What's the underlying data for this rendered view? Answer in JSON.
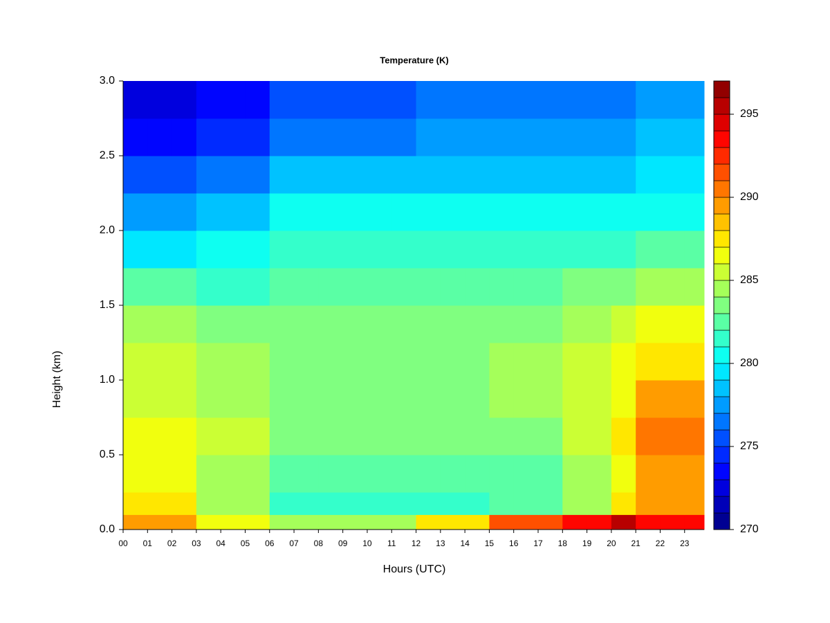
{
  "chart_data": {
    "type": "heatmap",
    "title": "Temperature (K)",
    "x_label": "Hours (UTC)",
    "y_label": "Height (km)",
    "colormap": "jet",
    "xlim": [
      0,
      23.8
    ],
    "ylim": [
      0,
      3
    ],
    "zlim": [
      270,
      297
    ],
    "xticks": [
      {
        "value": 0,
        "label": "00"
      },
      {
        "value": 1,
        "label": "01"
      },
      {
        "value": 2,
        "label": "02"
      },
      {
        "value": 3,
        "label": "03"
      },
      {
        "value": 4,
        "label": "04"
      },
      {
        "value": 5,
        "label": "05"
      },
      {
        "value": 6,
        "label": "06"
      },
      {
        "value": 7,
        "label": "07"
      },
      {
        "value": 8,
        "label": "08"
      },
      {
        "value": 9,
        "label": "09"
      },
      {
        "value": 10,
        "label": "10"
      },
      {
        "value": 11,
        "label": "11"
      },
      {
        "value": 12,
        "label": "12"
      },
      {
        "value": 13,
        "label": "13"
      },
      {
        "value": 14,
        "label": "14"
      },
      {
        "value": 15,
        "label": "15"
      },
      {
        "value": 16,
        "label": "16"
      },
      {
        "value": 17,
        "label": "17"
      },
      {
        "value": 18,
        "label": "18"
      },
      {
        "value": 19,
        "label": "19"
      },
      {
        "value": 20,
        "label": "20"
      },
      {
        "value": 21,
        "label": "21"
      },
      {
        "value": 22,
        "label": "22"
      },
      {
        "value": 23,
        "label": "23"
      }
    ],
    "yticks": [
      {
        "value": 0,
        "label": "0.0"
      },
      {
        "value": 0.5,
        "label": "0.5"
      },
      {
        "value": 1,
        "label": "1.0"
      },
      {
        "value": 1.5,
        "label": "1.5"
      },
      {
        "value": 2,
        "label": "2.0"
      },
      {
        "value": 2.5,
        "label": "2.5"
      },
      {
        "value": 3,
        "label": "3.0"
      }
    ],
    "zticks": [
      270,
      275,
      280,
      285,
      290,
      295
    ],
    "xbins": [
      0,
      1,
      2,
      3,
      4,
      5,
      6,
      7,
      8,
      9,
      10,
      11,
      12,
      13,
      14,
      15,
      16,
      17,
      18,
      19,
      20,
      21,
      22,
      23,
      23.8
    ],
    "ybins": [
      0,
      0.1,
      0.25,
      0.5,
      0.75,
      1,
      1.25,
      1.5,
      1.75,
      2,
      2.25,
      2.5,
      2.75,
      3
    ],
    "z": [
      [
        289,
        289,
        289,
        286,
        286,
        286,
        284,
        284,
        284,
        284,
        284,
        284,
        287,
        287,
        287,
        291,
        291,
        291,
        293,
        293,
        295,
        293,
        293,
        293
      ],
      [
        287,
        287,
        287,
        284,
        284,
        284,
        281,
        281,
        281,
        281,
        281,
        281,
        281,
        281,
        281,
        282,
        282,
        282,
        284,
        284,
        287,
        289,
        289,
        289
      ],
      [
        286,
        286,
        286,
        284,
        284,
        284,
        282,
        282,
        282,
        282,
        282,
        282,
        282,
        282,
        282,
        282,
        282,
        282,
        284,
        284,
        286,
        289,
        289,
        289
      ],
      [
        286,
        286,
        286,
        285,
        285,
        285,
        283,
        283,
        283,
        283,
        283,
        283,
        283,
        283,
        283,
        283,
        283,
        283,
        285,
        285,
        287,
        290,
        290,
        290
      ],
      [
        285,
        285,
        285,
        284,
        284,
        284,
        283,
        283,
        283,
        283,
        283,
        283,
        283,
        283,
        283,
        284,
        284,
        284,
        285,
        285,
        286,
        289,
        289,
        289
      ],
      [
        285,
        285,
        285,
        284,
        284,
        284,
        283,
        283,
        283,
        283,
        283,
        283,
        283,
        283,
        283,
        284,
        284,
        284,
        285,
        285,
        286,
        287,
        287,
        287
      ],
      [
        284,
        284,
        284,
        283,
        283,
        283,
        283,
        283,
        283,
        283,
        283,
        283,
        283,
        283,
        283,
        283,
        283,
        283,
        284,
        284,
        285,
        286,
        286,
        286
      ],
      [
        282,
        282,
        282,
        281,
        281,
        281,
        282,
        282,
        282,
        282,
        282,
        282,
        282,
        282,
        282,
        282,
        282,
        282,
        283,
        283,
        283,
        284,
        284,
        284
      ],
      [
        279,
        279,
        279,
        280,
        280,
        280,
        281,
        281,
        281,
        281,
        281,
        281,
        281,
        281,
        281,
        281,
        281,
        281,
        281,
        281,
        281,
        282,
        282,
        282
      ],
      [
        277,
        277,
        277,
        278,
        278,
        278,
        280,
        280,
        280,
        280,
        280,
        280,
        280,
        280,
        280,
        280,
        280,
        280,
        280,
        280,
        280,
        280,
        280,
        280
      ],
      [
        275,
        275,
        275,
        276,
        276,
        276,
        278,
        278,
        278,
        278,
        278,
        278,
        278,
        278,
        278,
        278,
        278,
        278,
        278,
        278,
        278,
        279,
        279,
        279
      ],
      [
        273,
        273,
        273,
        274,
        274,
        274,
        276,
        276,
        276,
        276,
        276,
        276,
        277,
        277,
        277,
        277,
        277,
        277,
        277,
        277,
        277,
        278,
        278,
        278
      ],
      [
        272,
        272,
        272,
        273,
        273,
        273,
        275,
        275,
        275,
        275,
        275,
        275,
        276,
        276,
        276,
        276,
        276,
        276,
        276,
        276,
        276,
        277,
        277,
        277
      ]
    ]
  }
}
